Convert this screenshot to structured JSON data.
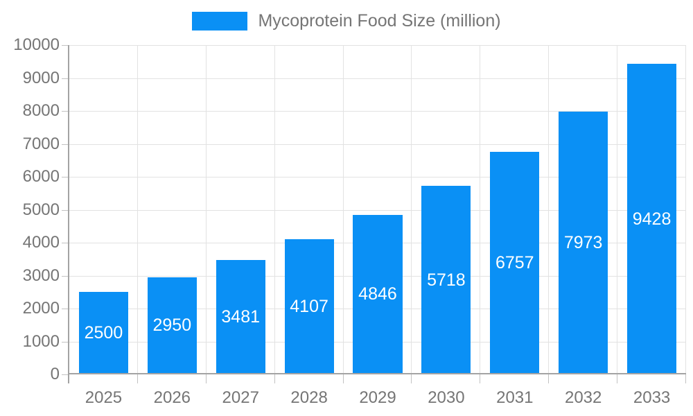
{
  "chart_data": {
    "type": "bar",
    "title": "Mycoprotein Food Size (million)",
    "legend_entries": [
      "Mycoprotein Food Size (million)"
    ],
    "categories": [
      "2025",
      "2026",
      "2027",
      "2028",
      "2029",
      "2030",
      "2031",
      "2032",
      "2033"
    ],
    "series": [
      {
        "name": "Mycoprotein Food Size (million)",
        "values": [
          2500,
          2950,
          3481,
          4107,
          4846,
          5718,
          6757,
          7973,
          9428
        ]
      }
    ],
    "xlabel": "",
    "ylabel": "",
    "ylim": [
      0,
      10000
    ],
    "yticks": [
      0,
      1000,
      2000,
      3000,
      4000,
      5000,
      6000,
      7000,
      8000,
      9000,
      10000
    ],
    "grid": true,
    "legend_position": "top-center",
    "value_labels_position": "inside-center",
    "colors": {
      "bar": "#0a90f5",
      "value_label": "#ffffff",
      "axis_line": "#a3a3a3",
      "grid_line": "#e2e2e2",
      "tick_mark": "#c2c2c2",
      "axis_text": "#757575",
      "legend_text": "#757575",
      "background": "#ffffff"
    }
  }
}
